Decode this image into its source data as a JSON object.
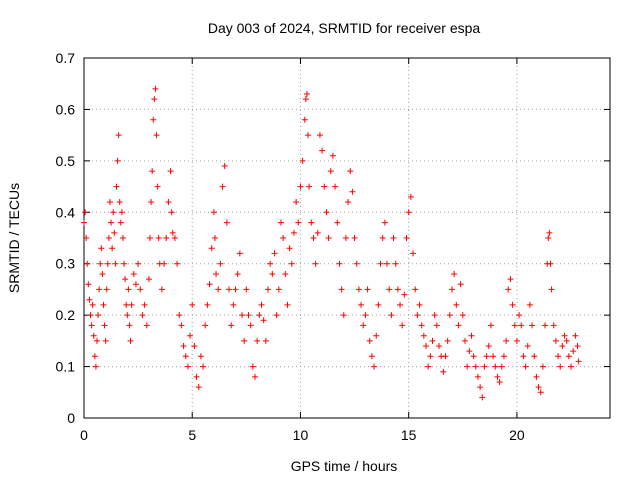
{
  "chart_data": {
    "type": "scatter",
    "title": "Day 003 of 2024, SRMTID for receiver espa",
    "xlabel": "GPS time / hours",
    "ylabel": "SRMTID / TECUs",
    "xlim": [
      0,
      24.3
    ],
    "ylim": [
      0,
      0.7
    ],
    "xticks": [
      0,
      5,
      10,
      15,
      20
    ],
    "xtick_labels": [
      "0",
      "5",
      "10",
      "15",
      "20"
    ],
    "yticks": [
      0,
      0.1,
      0.2,
      0.3,
      0.4,
      0.5,
      0.6,
      0.7
    ],
    "ytick_labels": [
      "0",
      "0.1",
      "0.2",
      "0.3",
      "0.4",
      "0.5",
      "0.6",
      "0.7"
    ],
    "grid": true,
    "marker": "+",
    "color": "#ff0000",
    "series": [
      {
        "name": "SRMTID",
        "points": [
          [
            0.0,
            0.38
          ],
          [
            0.05,
            0.4
          ],
          [
            0.1,
            0.35
          ],
          [
            0.15,
            0.3
          ],
          [
            0.2,
            0.26
          ],
          [
            0.25,
            0.23
          ],
          [
            0.3,
            0.2
          ],
          [
            0.35,
            0.18
          ],
          [
            0.4,
            0.22
          ],
          [
            0.45,
            0.16
          ],
          [
            0.5,
            0.12
          ],
          [
            0.55,
            0.1
          ],
          [
            0.6,
            0.15
          ],
          [
            0.65,
            0.2
          ],
          [
            0.7,
            0.25
          ],
          [
            0.75,
            0.3
          ],
          [
            0.8,
            0.33
          ],
          [
            0.85,
            0.28
          ],
          [
            0.9,
            0.22
          ],
          [
            0.95,
            0.18
          ],
          [
            1.0,
            0.15
          ],
          [
            1.05,
            0.25
          ],
          [
            1.1,
            0.3
          ],
          [
            1.15,
            0.35
          ],
          [
            1.2,
            0.42
          ],
          [
            1.25,
            0.38
          ],
          [
            1.3,
            0.33
          ],
          [
            1.35,
            0.4
          ],
          [
            1.4,
            0.36
          ],
          [
            1.45,
            0.3
          ],
          [
            1.5,
            0.45
          ],
          [
            1.55,
            0.5
          ],
          [
            1.6,
            0.55
          ],
          [
            1.65,
            0.42
          ],
          [
            1.7,
            0.38
          ],
          [
            1.75,
            0.4
          ],
          [
            1.8,
            0.35
          ],
          [
            1.85,
            0.3
          ],
          [
            1.9,
            0.27
          ],
          [
            1.95,
            0.22
          ],
          [
            2.0,
            0.2
          ],
          [
            2.05,
            0.25
          ],
          [
            2.1,
            0.18
          ],
          [
            2.15,
            0.15
          ],
          [
            2.2,
            0.22
          ],
          [
            2.3,
            0.28
          ],
          [
            2.4,
            0.26
          ],
          [
            2.5,
            0.3
          ],
          [
            2.6,
            0.25
          ],
          [
            2.7,
            0.2
          ],
          [
            2.8,
            0.22
          ],
          [
            2.9,
            0.18
          ],
          [
            3.0,
            0.27
          ],
          [
            3.05,
            0.35
          ],
          [
            3.1,
            0.42
          ],
          [
            3.15,
            0.48
          ],
          [
            3.2,
            0.58
          ],
          [
            3.25,
            0.62
          ],
          [
            3.3,
            0.64
          ],
          [
            3.35,
            0.55
          ],
          [
            3.4,
            0.45
          ],
          [
            3.45,
            0.35
          ],
          [
            3.5,
            0.3
          ],
          [
            3.6,
            0.25
          ],
          [
            3.7,
            0.3
          ],
          [
            3.8,
            0.35
          ],
          [
            3.9,
            0.42
          ],
          [
            4.0,
            0.48
          ],
          [
            4.05,
            0.4
          ],
          [
            4.1,
            0.36
          ],
          [
            4.2,
            0.35
          ],
          [
            4.3,
            0.3
          ],
          [
            4.4,
            0.2
          ],
          [
            4.5,
            0.18
          ],
          [
            4.6,
            0.14
          ],
          [
            4.7,
            0.12
          ],
          [
            4.8,
            0.1
          ],
          [
            4.9,
            0.16
          ],
          [
            5.0,
            0.22
          ],
          [
            5.1,
            0.14
          ],
          [
            5.2,
            0.08
          ],
          [
            5.3,
            0.06
          ],
          [
            5.4,
            0.12
          ],
          [
            5.5,
            0.1
          ],
          [
            5.6,
            0.18
          ],
          [
            5.7,
            0.22
          ],
          [
            5.8,
            0.26
          ],
          [
            5.9,
            0.33
          ],
          [
            6.0,
            0.4
          ],
          [
            6.05,
            0.35
          ],
          [
            6.1,
            0.28
          ],
          [
            6.2,
            0.25
          ],
          [
            6.3,
            0.3
          ],
          [
            6.4,
            0.45
          ],
          [
            6.5,
            0.49
          ],
          [
            6.6,
            0.38
          ],
          [
            6.7,
            0.25
          ],
          [
            6.8,
            0.18
          ],
          [
            6.9,
            0.22
          ],
          [
            7.0,
            0.25
          ],
          [
            7.1,
            0.28
          ],
          [
            7.2,
            0.32
          ],
          [
            7.3,
            0.2
          ],
          [
            7.4,
            0.15
          ],
          [
            7.5,
            0.25
          ],
          [
            7.6,
            0.2
          ],
          [
            7.7,
            0.18
          ],
          [
            7.8,
            0.1
          ],
          [
            7.9,
            0.08
          ],
          [
            8.0,
            0.15
          ],
          [
            8.1,
            0.2
          ],
          [
            8.2,
            0.22
          ],
          [
            8.3,
            0.19
          ],
          [
            8.4,
            0.15
          ],
          [
            8.5,
            0.25
          ],
          [
            8.6,
            0.3
          ],
          [
            8.7,
            0.28
          ],
          [
            8.8,
            0.32
          ],
          [
            8.9,
            0.2
          ],
          [
            9.0,
            0.25
          ],
          [
            9.1,
            0.38
          ],
          [
            9.2,
            0.35
          ],
          [
            9.3,
            0.28
          ],
          [
            9.4,
            0.22
          ],
          [
            9.5,
            0.33
          ],
          [
            9.6,
            0.3
          ],
          [
            9.7,
            0.36
          ],
          [
            9.8,
            0.42
          ],
          [
            9.9,
            0.38
          ],
          [
            10.0,
            0.45
          ],
          [
            10.1,
            0.5
          ],
          [
            10.2,
            0.58
          ],
          [
            10.25,
            0.62
          ],
          [
            10.3,
            0.63
          ],
          [
            10.35,
            0.55
          ],
          [
            10.4,
            0.45
          ],
          [
            10.5,
            0.38
          ],
          [
            10.6,
            0.35
          ],
          [
            10.7,
            0.3
          ],
          [
            10.8,
            0.36
          ],
          [
            10.9,
            0.55
          ],
          [
            11.0,
            0.52
          ],
          [
            11.1,
            0.45
          ],
          [
            11.2,
            0.4
          ],
          [
            11.3,
            0.35
          ],
          [
            11.4,
            0.48
          ],
          [
            11.5,
            0.51
          ],
          [
            11.6,
            0.45
          ],
          [
            11.7,
            0.38
          ],
          [
            11.8,
            0.3
          ],
          [
            11.9,
            0.25
          ],
          [
            12.0,
            0.2
          ],
          [
            12.1,
            0.35
          ],
          [
            12.2,
            0.42
          ],
          [
            12.3,
            0.48
          ],
          [
            12.4,
            0.44
          ],
          [
            12.5,
            0.35
          ],
          [
            12.6,
            0.3
          ],
          [
            12.7,
            0.25
          ],
          [
            12.8,
            0.22
          ],
          [
            12.9,
            0.18
          ],
          [
            13.0,
            0.2
          ],
          [
            13.1,
            0.25
          ],
          [
            13.2,
            0.15
          ],
          [
            13.3,
            0.12
          ],
          [
            13.4,
            0.1
          ],
          [
            13.5,
            0.16
          ],
          [
            13.6,
            0.22
          ],
          [
            13.7,
            0.3
          ],
          [
            13.8,
            0.35
          ],
          [
            13.9,
            0.38
          ],
          [
            14.0,
            0.3
          ],
          [
            14.1,
            0.25
          ],
          [
            14.2,
            0.2
          ],
          [
            14.3,
            0.35
          ],
          [
            14.4,
            0.3
          ],
          [
            14.5,
            0.25
          ],
          [
            14.6,
            0.22
          ],
          [
            14.7,
            0.18
          ],
          [
            14.8,
            0.24
          ],
          [
            14.9,
            0.35
          ],
          [
            15.0,
            0.4
          ],
          [
            15.1,
            0.43
          ],
          [
            15.2,
            0.32
          ],
          [
            15.3,
            0.25
          ],
          [
            15.4,
            0.2
          ],
          [
            15.5,
            0.22
          ],
          [
            15.6,
            0.18
          ],
          [
            15.7,
            0.16
          ],
          [
            15.8,
            0.14
          ],
          [
            15.9,
            0.1
          ],
          [
            16.0,
            0.12
          ],
          [
            16.1,
            0.15
          ],
          [
            16.2,
            0.2
          ],
          [
            16.3,
            0.18
          ],
          [
            16.4,
            0.14
          ],
          [
            16.5,
            0.12
          ],
          [
            16.6,
            0.09
          ],
          [
            16.7,
            0.12
          ],
          [
            16.8,
            0.15
          ],
          [
            16.9,
            0.2
          ],
          [
            17.0,
            0.25
          ],
          [
            17.1,
            0.28
          ],
          [
            17.2,
            0.22
          ],
          [
            17.3,
            0.18
          ],
          [
            17.4,
            0.26
          ],
          [
            17.5,
            0.2
          ],
          [
            17.6,
            0.15
          ],
          [
            17.7,
            0.1
          ],
          [
            17.8,
            0.13
          ],
          [
            17.9,
            0.16
          ],
          [
            18.0,
            0.12
          ],
          [
            18.1,
            0.1
          ],
          [
            18.2,
            0.08
          ],
          [
            18.3,
            0.06
          ],
          [
            18.4,
            0.04
          ],
          [
            18.5,
            0.1
          ],
          [
            18.6,
            0.12
          ],
          [
            18.7,
            0.14
          ],
          [
            18.8,
            0.18
          ],
          [
            18.9,
            0.12
          ],
          [
            19.0,
            0.1
          ],
          [
            19.1,
            0.08
          ],
          [
            19.2,
            0.07
          ],
          [
            19.3,
            0.1
          ],
          [
            19.4,
            0.12
          ],
          [
            19.5,
            0.15
          ],
          [
            19.6,
            0.25
          ],
          [
            19.7,
            0.27
          ],
          [
            19.8,
            0.22
          ],
          [
            19.9,
            0.18
          ],
          [
            20.0,
            0.15
          ],
          [
            20.1,
            0.2
          ],
          [
            20.2,
            0.18
          ],
          [
            20.3,
            0.12
          ],
          [
            20.4,
            0.1
          ],
          [
            20.5,
            0.14
          ],
          [
            20.6,
            0.22
          ],
          [
            20.7,
            0.18
          ],
          [
            20.8,
            0.12
          ],
          [
            20.9,
            0.08
          ],
          [
            21.0,
            0.06
          ],
          [
            21.1,
            0.05
          ],
          [
            21.2,
            0.1
          ],
          [
            21.3,
            0.18
          ],
          [
            21.4,
            0.3
          ],
          [
            21.45,
            0.35
          ],
          [
            21.5,
            0.36
          ],
          [
            21.55,
            0.3
          ],
          [
            21.6,
            0.25
          ],
          [
            21.7,
            0.18
          ],
          [
            21.8,
            0.15
          ],
          [
            21.9,
            0.12
          ],
          [
            22.0,
            0.1
          ],
          [
            22.1,
            0.14
          ],
          [
            22.2,
            0.16
          ],
          [
            22.3,
            0.15
          ],
          [
            22.4,
            0.12
          ],
          [
            22.5,
            0.1
          ],
          [
            22.6,
            0.13
          ],
          [
            22.7,
            0.16
          ],
          [
            22.8,
            0.14
          ],
          [
            22.85,
            0.11
          ]
        ]
      }
    ]
  }
}
